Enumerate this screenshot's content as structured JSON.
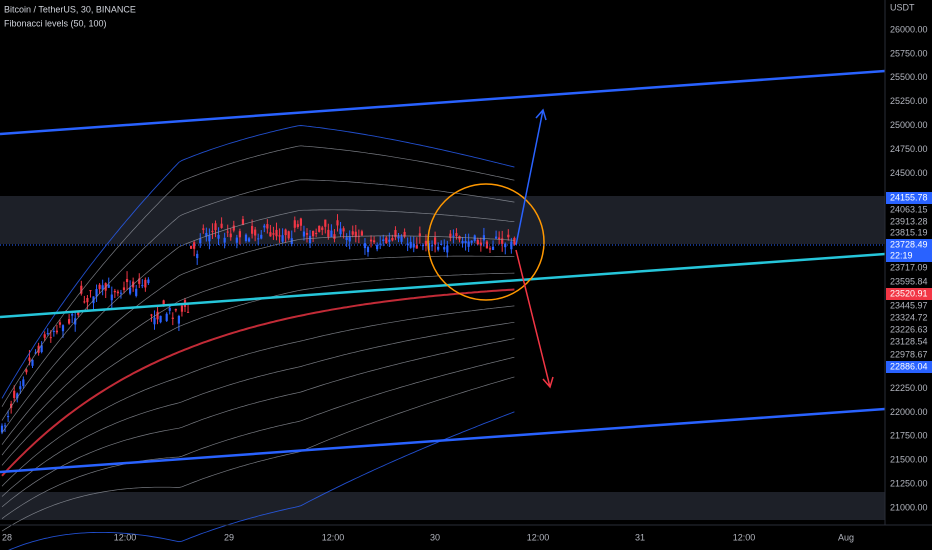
{
  "header": {
    "symbol": "Bitcoin / TetherUS, 30, BINANCE",
    "indicator": "Fibonacci levels (50, 100)"
  },
  "price_axis": {
    "currency": "USDT",
    "ticks": [
      {
        "value": 26000,
        "label": "26000.00"
      },
      {
        "value": 25750,
        "label": "25750.00"
      },
      {
        "value": 25500,
        "label": "25500.00"
      },
      {
        "value": 25250,
        "label": "25250.00"
      },
      {
        "value": 25000,
        "label": "25000.00"
      },
      {
        "value": 24750,
        "label": "24750.00"
      },
      {
        "value": 24500,
        "label": "24500.00"
      },
      {
        "value": 22250,
        "label": "22250.00"
      },
      {
        "value": 22000,
        "label": "22000.00"
      },
      {
        "value": 21750,
        "label": "21750.00"
      },
      {
        "value": 21500,
        "label": "21500.00"
      },
      {
        "value": 21250,
        "label": "21250.00"
      },
      {
        "value": 21000,
        "label": "21000.00"
      }
    ],
    "tags": [
      {
        "label": "24155.78",
        "style": "blue"
      },
      {
        "label": "24063.15",
        "style": "plain"
      },
      {
        "label": "23913.28",
        "style": "plain"
      },
      {
        "label": "23815.19",
        "style": "plain"
      },
      {
        "label": "23728.49",
        "style": "blue"
      },
      {
        "label": "22:19",
        "style": "blue"
      },
      {
        "label": "23717.09",
        "style": "plain"
      },
      {
        "label": "23595.84",
        "style": "plain"
      },
      {
        "label": "23520.91",
        "style": "red"
      },
      {
        "label": "23445.97",
        "style": "plain"
      },
      {
        "label": "23324.72",
        "style": "plain"
      },
      {
        "label": "23226.63",
        "style": "plain"
      },
      {
        "label": "23128.54",
        "style": "plain"
      },
      {
        "label": "22978.67",
        "style": "plain"
      },
      {
        "label": "22886.04",
        "style": "blue"
      }
    ]
  },
  "time_axis": [
    "28",
    "12:00",
    "29",
    "12:00",
    "30",
    "12:00",
    "31",
    "12:00",
    "Aug"
  ]
}
